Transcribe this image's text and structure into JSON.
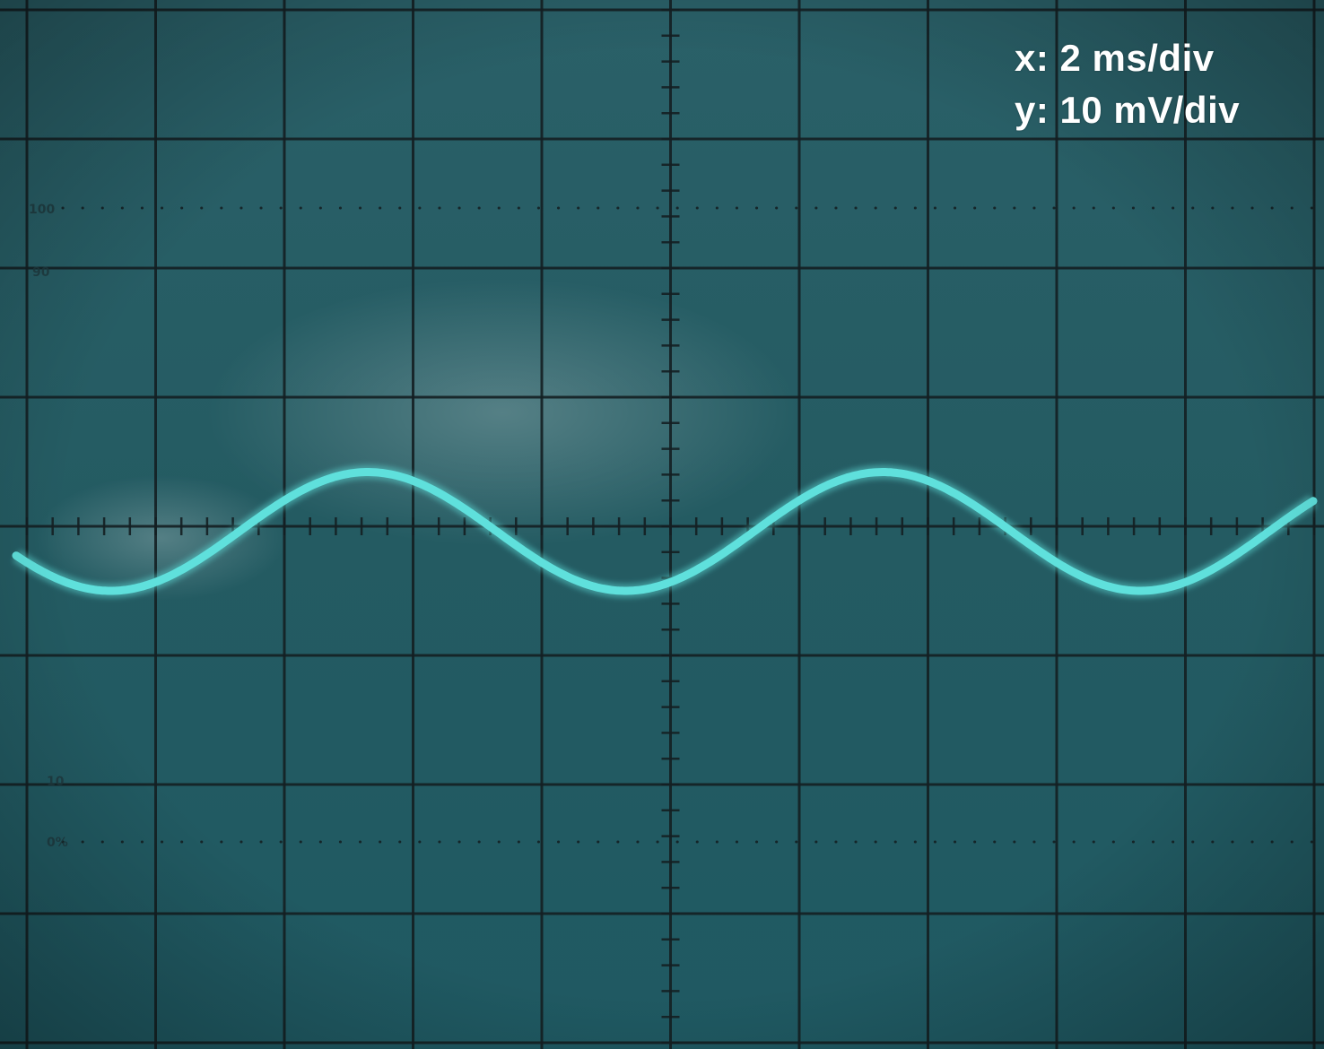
{
  "screen": {
    "x_scale": "x: 2 ms/div",
    "y_scale": "y: 10 mV/div",
    "graticule_marks": {
      "top_100": "100",
      "top_90": "90",
      "bottom_10": "10",
      "bottom_0": "0%"
    }
  },
  "signal": {
    "type": "sine",
    "period_ms": 8,
    "amplitude_mV": 4.6,
    "offset_mV": -0.4
  },
  "colors": {
    "screen": "#245c63",
    "grid": "#141f22",
    "trace": "#5fe0dc",
    "text": "#ffffff"
  }
}
